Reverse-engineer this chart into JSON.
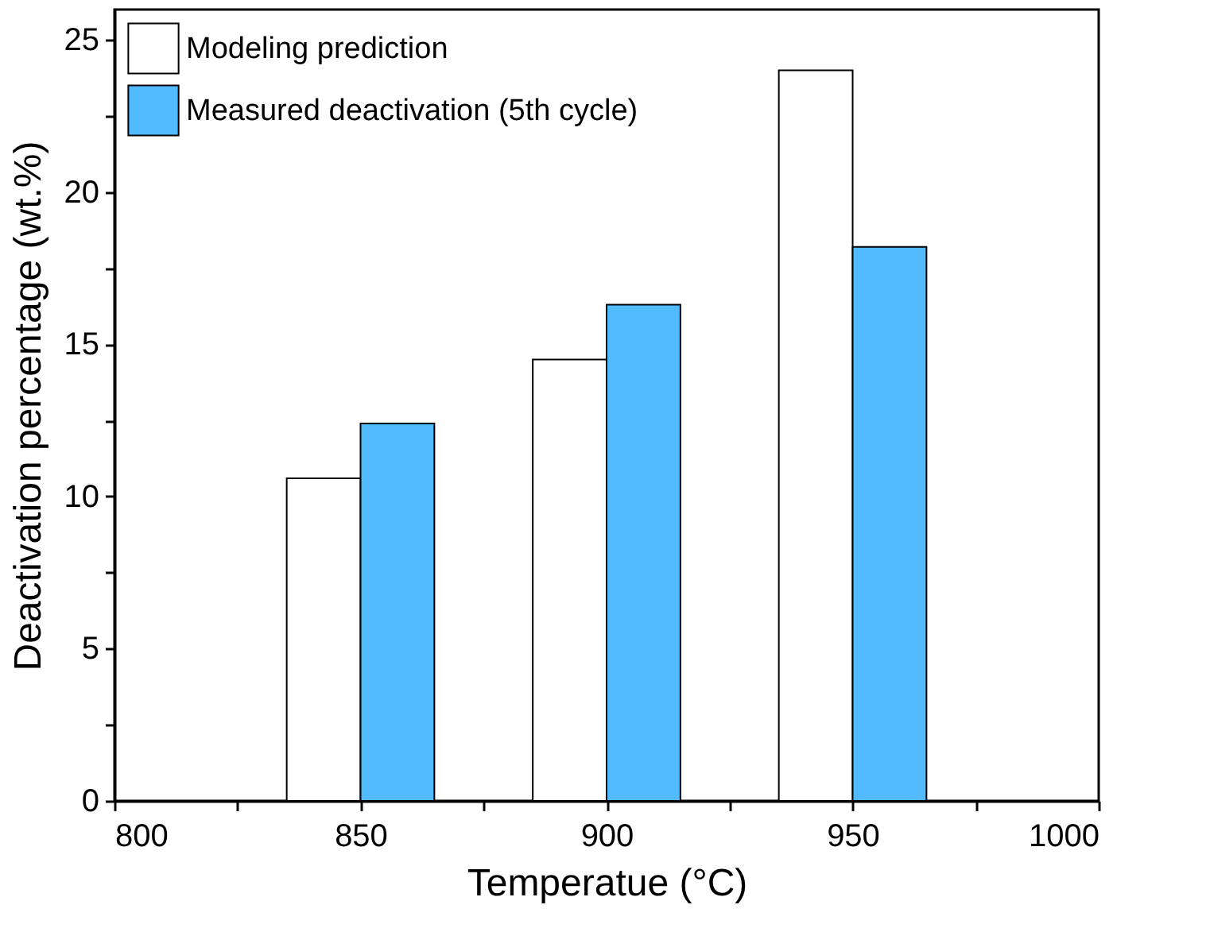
{
  "chart_data": {
    "type": "bar",
    "xlabel": "Temperatue (°C)",
    "ylabel": "Deactivation percentage (wt.%)",
    "x": [
      850,
      900,
      950
    ],
    "series": [
      {
        "name": "Modeling prediction",
        "color": "#ffffff",
        "values": [
          10.6,
          14.5,
          24.0
        ]
      },
      {
        "name": "Measured deactivation (5th cycle)",
        "color": "#52bbff",
        "values": [
          12.4,
          16.3,
          18.2
        ]
      }
    ],
    "xlim": [
      800,
      1000
    ],
    "xticks": [
      800,
      {
        "value": 825,
        "label": null
      },
      850,
      {
        "value": 875,
        "label": null
      },
      900,
      {
        "value": 925,
        "label": null
      },
      950,
      {
        "value": 975,
        "label": null
      },
      1000
    ],
    "ylim": [
      0,
      26
    ],
    "yticks": [
      0,
      {
        "value": 2.5,
        "label": null
      },
      5,
      {
        "value": 7.5,
        "label": null
      },
      10,
      {
        "value": 12.5,
        "label": null
      },
      15,
      {
        "value": 17.5,
        "label": null
      },
      20,
      {
        "value": 22.5,
        "label": null
      },
      25
    ],
    "grid": false,
    "legend": "top left"
  }
}
